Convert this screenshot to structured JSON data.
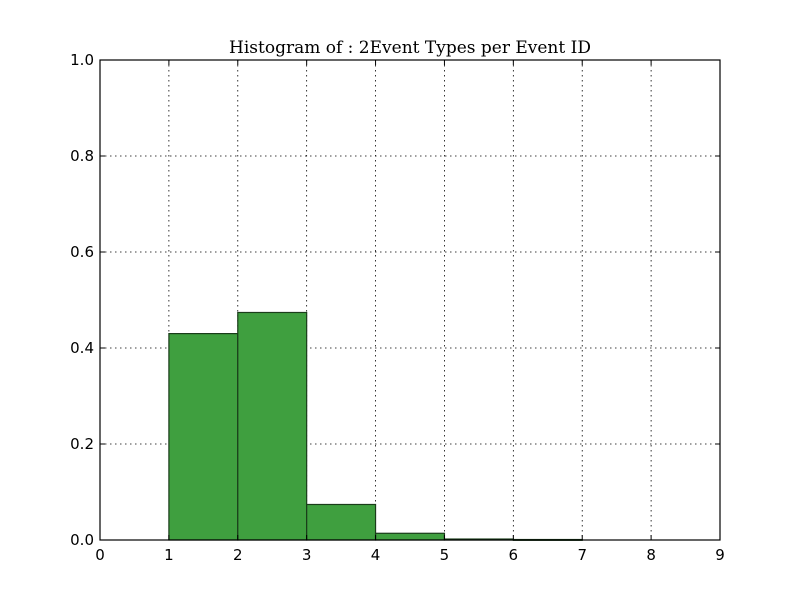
{
  "chart_data": {
    "type": "bar",
    "title": "Histogram of : 2Event Types per Event ID",
    "xlabel": "",
    "ylabel": "",
    "bins": [
      {
        "start": 1,
        "end": 2,
        "value": 0.43
      },
      {
        "start": 2,
        "end": 3,
        "value": 0.474
      },
      {
        "start": 3,
        "end": 4,
        "value": 0.074
      },
      {
        "start": 4,
        "end": 5,
        "value": 0.014
      },
      {
        "start": 5,
        "end": 6,
        "value": 0.002
      },
      {
        "start": 6,
        "end": 7,
        "value": 0.001
      }
    ],
    "xlim": [
      0,
      9
    ],
    "ylim": [
      0,
      1.0
    ],
    "x_ticks": [
      "0",
      "1",
      "2",
      "3",
      "4",
      "5",
      "6",
      "7",
      "8",
      "9"
    ],
    "y_ticks": [
      "0.0",
      "0.2",
      "0.4",
      "0.6",
      "0.8",
      "1.0"
    ],
    "grid": true,
    "bar_color": "#3f9f3f",
    "edge_color": "#1a3d1a"
  }
}
